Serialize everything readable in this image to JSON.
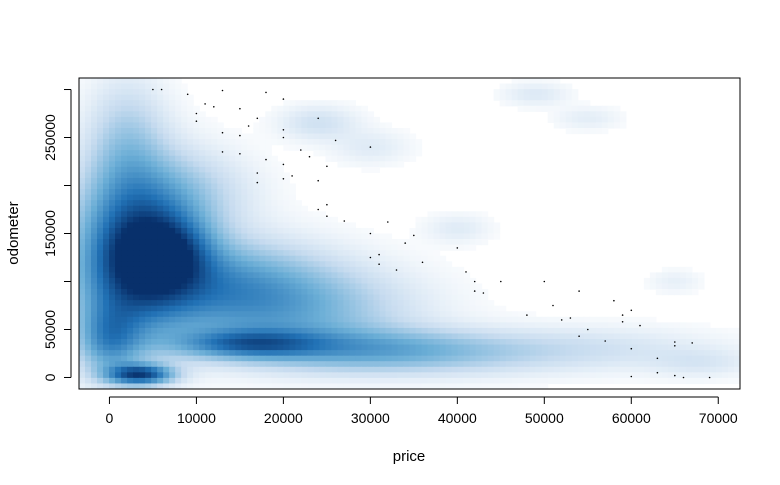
{
  "chart_data": {
    "type": "heatmap",
    "subtype": "smoothScatter",
    "title": "",
    "xlabel": "price",
    "ylabel": "odometer",
    "xlim": [
      -3500,
      72500
    ],
    "ylim": [
      -12000,
      312000
    ],
    "x_ticks": [
      0,
      10000,
      20000,
      30000,
      40000,
      50000,
      60000,
      70000
    ],
    "x_tick_labels": [
      "0",
      "10000",
      "20000",
      "30000",
      "40000",
      "50000",
      "60000",
      "70000"
    ],
    "y_ticks": [
      0,
      50000,
      150000,
      250000
    ],
    "y_tick_labels": [
      "0",
      "50000",
      "150000",
      "250000"
    ],
    "grid": false,
    "legend": "none",
    "colormap": [
      "#ffffff",
      "#c6dbef",
      "#6baed6",
      "#2171b5",
      "#08306b"
    ],
    "density_clusters": [
      {
        "x": 3000,
        "y": 130000,
        "sx": 4500,
        "sy": 55000,
        "w": 0.85
      },
      {
        "x": 6500,
        "y": 130000,
        "sx": 3500,
        "sy": 25000,
        "w": 0.55
      },
      {
        "x": 3500,
        "y": 3000,
        "sx": 2500,
        "sy": 7000,
        "w": 0.85
      },
      {
        "x": 0,
        "y": 40000,
        "sx": 2500,
        "sy": 25000,
        "w": 0.45
      },
      {
        "x": 16000,
        "y": 35000,
        "sx": 5500,
        "sy": 10000,
        "w": 0.55
      },
      {
        "x": 20000,
        "y": 70000,
        "sx": 9000,
        "sy": 30000,
        "w": 0.35
      },
      {
        "x": 28000,
        "y": 30000,
        "sx": 9000,
        "sy": 15000,
        "w": 0.3
      },
      {
        "x": 12000,
        "y": 100000,
        "sx": 8000,
        "sy": 30000,
        "w": 0.4
      },
      {
        "x": 38000,
        "y": 25000,
        "sx": 10000,
        "sy": 15000,
        "w": 0.18
      },
      {
        "x": 2000,
        "y": 240000,
        "sx": 3000,
        "sy": 45000,
        "w": 0.22
      },
      {
        "x": 9000,
        "y": 190000,
        "sx": 5000,
        "sy": 30000,
        "w": 0.18
      },
      {
        "x": 55000,
        "y": 30000,
        "sx": 10000,
        "sy": 15000,
        "w": 0.1
      },
      {
        "x": 68000,
        "y": 15000,
        "sx": 4000,
        "sy": 10000,
        "w": 0.08
      },
      {
        "x": 24000,
        "y": 265000,
        "sx": 3000,
        "sy": 12000,
        "w": 0.12
      },
      {
        "x": 49000,
        "y": 295000,
        "sx": 2500,
        "sy": 8000,
        "w": 0.08
      },
      {
        "x": 55000,
        "y": 270000,
        "sx": 2500,
        "sy": 8000,
        "w": 0.06
      },
      {
        "x": 40000,
        "y": 155000,
        "sx": 2500,
        "sy": 10000,
        "w": 0.07
      },
      {
        "x": 30000,
        "y": 240000,
        "sx": 3000,
        "sy": 12000,
        "w": 0.07
      },
      {
        "x": 65000,
        "y": 100000,
        "sx": 2000,
        "sy": 8000,
        "w": 0.05
      }
    ],
    "points": [
      [
        5000,
        300000
      ],
      [
        6000,
        300000
      ],
      [
        13000,
        299000
      ],
      [
        18000,
        297000
      ],
      [
        9000,
        295000
      ],
      [
        20000,
        290000
      ],
      [
        11000,
        285000
      ],
      [
        15000,
        280000
      ],
      [
        12000,
        282000
      ],
      [
        10000,
        275000
      ],
      [
        17000,
        270000
      ],
      [
        24000,
        270000
      ],
      [
        10000,
        267000
      ],
      [
        16000,
        262000
      ],
      [
        20000,
        258000
      ],
      [
        13000,
        255000
      ],
      [
        15000,
        252000
      ],
      [
        20000,
        250000
      ],
      [
        26000,
        247000
      ],
      [
        30000,
        240000
      ],
      [
        22000,
        237000
      ],
      [
        13000,
        235000
      ],
      [
        15000,
        233000
      ],
      [
        23000,
        230000
      ],
      [
        18000,
        227000
      ],
      [
        20000,
        222000
      ],
      [
        25000,
        220000
      ],
      [
        17000,
        213000
      ],
      [
        21000,
        210000
      ],
      [
        20000,
        207000
      ],
      [
        24000,
        205000
      ],
      [
        17000,
        203000
      ],
      [
        25000,
        180000
      ],
      [
        24000,
        175000
      ],
      [
        25000,
        168000
      ],
      [
        27000,
        163000
      ],
      [
        32000,
        162000
      ],
      [
        30000,
        150000
      ],
      [
        35000,
        148000
      ],
      [
        34000,
        140000
      ],
      [
        40000,
        135000
      ],
      [
        31000,
        128000
      ],
      [
        30000,
        125000
      ],
      [
        31000,
        118000
      ],
      [
        36000,
        120000
      ],
      [
        33000,
        112000
      ],
      [
        41000,
        110000
      ],
      [
        42000,
        100000
      ],
      [
        45000,
        100000
      ],
      [
        50000,
        100000
      ],
      [
        42000,
        90000
      ],
      [
        54000,
        90000
      ],
      [
        43000,
        88000
      ],
      [
        58000,
        80000
      ],
      [
        51000,
        75000
      ],
      [
        48000,
        65000
      ],
      [
        53000,
        62000
      ],
      [
        52000,
        60000
      ],
      [
        59000,
        58000
      ],
      [
        61000,
        54000
      ],
      [
        55000,
        50000
      ],
      [
        54000,
        43000
      ],
      [
        57000,
        38000
      ],
      [
        65000,
        37000
      ],
      [
        67000,
        36000
      ],
      [
        65000,
        33000
      ],
      [
        60000,
        30000
      ],
      [
        63000,
        20000
      ],
      [
        63000,
        5000
      ],
      [
        65000,
        2000
      ],
      [
        60000,
        1000
      ],
      [
        69000,
        0
      ],
      [
        66000,
        0
      ],
      [
        59000,
        65000
      ],
      [
        60000,
        70000
      ]
    ]
  }
}
